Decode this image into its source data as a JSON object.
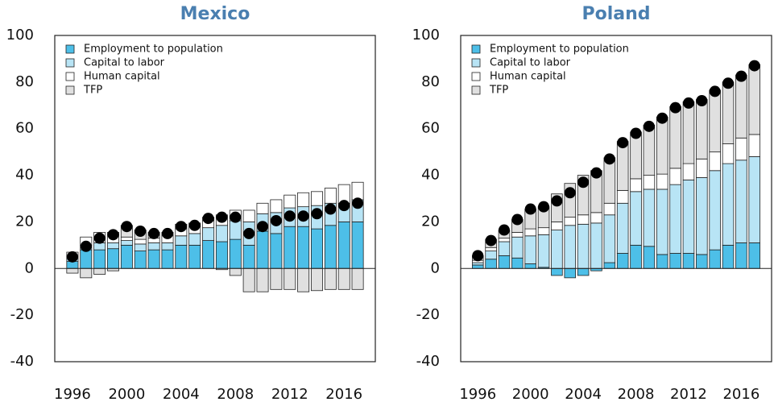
{
  "chart_data": [
    {
      "type": "bar",
      "stacked": true,
      "title": "Mexico",
      "x": [
        1996,
        1997,
        1998,
        1999,
        2000,
        2001,
        2002,
        2003,
        2004,
        2005,
        2006,
        2007,
        2008,
        2009,
        2010,
        2011,
        2012,
        2013,
        2014,
        2015,
        2016,
        2017
      ],
      "xlim": [
        1994.7,
        2018.3
      ],
      "xticks": [
        1996,
        2000,
        2004,
        2008,
        2012,
        2016
      ],
      "ylim": [
        -40,
        100
      ],
      "yticks": [
        -40,
        -20,
        0,
        20,
        40,
        60,
        80,
        100
      ],
      "legend": "upper left",
      "series": [
        {
          "name": "Employment to population",
          "color": "#4dbfe8",
          "values": [
            3,
            8,
            8,
            8.5,
            10,
            7.5,
            8,
            8,
            10,
            10,
            12,
            11.5,
            12.5,
            10,
            16,
            15,
            18,
            18,
            17,
            18.5,
            20,
            20
          ]
        },
        {
          "name": "Capital to labor",
          "color": "#b8e4f5",
          "values": [
            2,
            2,
            3,
            2.5,
            2,
            3,
            3,
            3,
            4,
            5,
            5.5,
            7,
            8,
            10,
            7.5,
            9,
            8,
            8.5,
            10,
            9.5,
            8,
            9.5
          ]
        },
        {
          "name": "Human capital",
          "color": "#ffffff",
          "values": [
            2,
            3.5,
            4.5,
            4.5,
            1.5,
            2,
            2,
            3,
            3,
            3,
            3,
            4.5,
            4.5,
            5,
            4.5,
            5.5,
            5.5,
            6,
            6,
            6.5,
            8,
            7.5
          ]
        },
        {
          "name": "TFP",
          "color": "#e0e0e0",
          "values": [
            -2,
            -4,
            -2.5,
            -1,
            5,
            4,
            2.5,
            1.5,
            2,
            1.5,
            1.5,
            -0.5,
            -3,
            -10,
            -10,
            -9,
            -9,
            -10,
            -9.5,
            -9,
            -9,
            -9
          ]
        }
      ],
      "totals": {
        "color": "#000000",
        "values": [
          5,
          9.5,
          13,
          14.5,
          18,
          16,
          15,
          15,
          18,
          18.5,
          21.5,
          22,
          22,
          15,
          18,
          20.5,
          22.5,
          22.5,
          23.5,
          25.5,
          27,
          28
        ]
      }
    },
    {
      "type": "bar",
      "stacked": true,
      "title": "Poland",
      "x": [
        1996,
        1997,
        1998,
        1999,
        2000,
        2001,
        2002,
        2003,
        2004,
        2005,
        2006,
        2007,
        2008,
        2009,
        2010,
        2011,
        2012,
        2013,
        2014,
        2015,
        2016,
        2017
      ],
      "xlim": [
        1994.7,
        2018.3
      ],
      "xticks": [
        1996,
        2000,
        2004,
        2008,
        2012,
        2016
      ],
      "ylim": [
        -40,
        100
      ],
      "yticks": [
        -40,
        -20,
        0,
        20,
        40,
        60,
        80,
        100
      ],
      "legend": "upper left",
      "series": [
        {
          "name": "Employment to population",
          "color": "#4dbfe8",
          "values": [
            1.5,
            4,
            5.5,
            4.5,
            2,
            0.5,
            -3,
            -4,
            -3,
            -1,
            2.5,
            6.5,
            10,
            9.5,
            6,
            6.5,
            6.5,
            6,
            8,
            10,
            11,
            11
          ]
        },
        {
          "name": "Capital to labor",
          "color": "#b8e4f5",
          "values": [
            1,
            3.5,
            6,
            9,
            12,
            14,
            16.5,
            18.5,
            19,
            19.5,
            20.5,
            21.5,
            23,
            24.5,
            28,
            29.5,
            31.5,
            33,
            34,
            35,
            35.5,
            37
          ]
        },
        {
          "name": "Human capital",
          "color": "#ffffff",
          "values": [
            1,
            1.5,
            1.5,
            2,
            3,
            3,
            3.5,
            3.5,
            4,
            4.5,
            5,
            5.5,
            5.5,
            6,
            6.5,
            7,
            7,
            8,
            8,
            8.5,
            9.5,
            9.5
          ]
        },
        {
          "name": "TFP",
          "color": "#e0e0e0",
          "values": [
            2,
            3.5,
            3.5,
            5.5,
            8.5,
            9,
            12,
            14.5,
            17,
            18,
            19.5,
            21,
            20,
            21.5,
            24.5,
            26.5,
            26.5,
            25.5,
            26.5,
            26.5,
            27,
            30
          ]
        }
      ],
      "totals": {
        "color": "#000000",
        "values": [
          5.5,
          12,
          16.5,
          21,
          25.5,
          26.5,
          29,
          32.5,
          37,
          41,
          47,
          54,
          58,
          61,
          64.5,
          69,
          71,
          72,
          76,
          79.5,
          82.5,
          87
        ]
      }
    }
  ]
}
